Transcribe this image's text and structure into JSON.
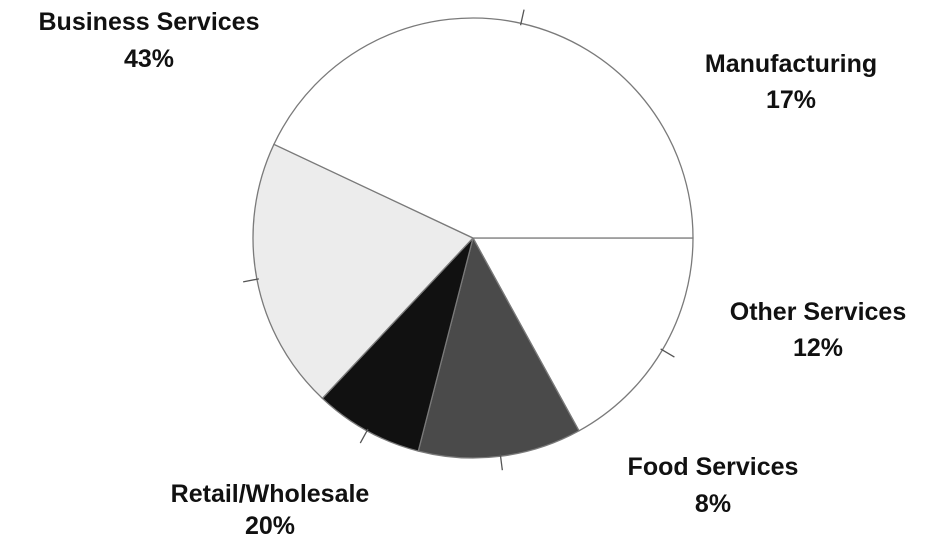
{
  "chart_data": {
    "type": "pie",
    "title": "",
    "slices": [
      {
        "label": "Manufacturing",
        "value": 17,
        "value_label": "17%",
        "color": "#ffffff"
      },
      {
        "label": "Other Services",
        "value": 12,
        "value_label": "12%",
        "color": "#4a4a4a"
      },
      {
        "label": "Food Services",
        "value": 8,
        "value_label": "8%",
        "color": "#111111"
      },
      {
        "label": "Retail/Wholesale",
        "value": 20,
        "value_label": "20%",
        "color": "#ececec"
      },
      {
        "label": "Business Services",
        "value": 43,
        "value_label": "43%",
        "color": "#ffffff"
      }
    ],
    "start_angle_deg": 0,
    "direction": "clockwise",
    "legend": "none",
    "edge_color": "#7a7a7a"
  }
}
